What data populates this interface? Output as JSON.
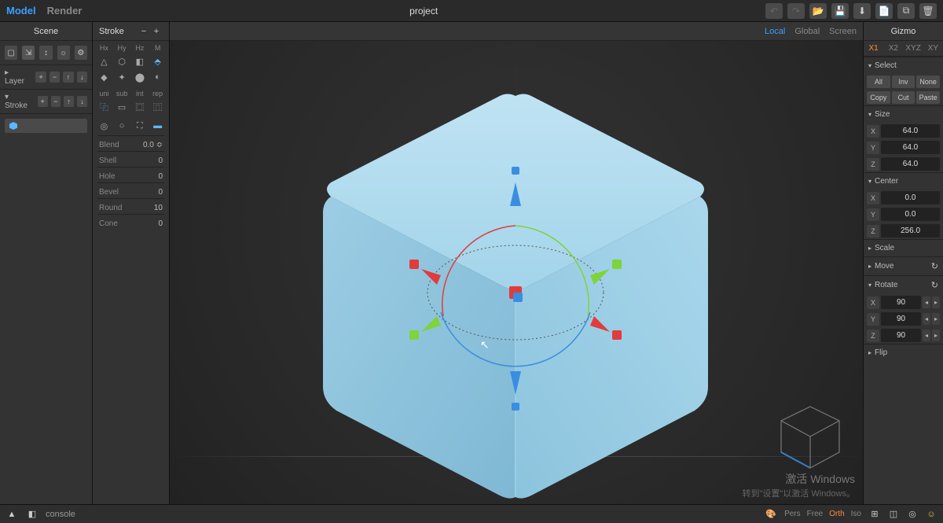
{
  "topbar": {
    "tabs": {
      "model": "Model",
      "render": "Render"
    },
    "active_tab": "model",
    "title": "project",
    "actions": {
      "undo": "↶",
      "redo": "↷",
      "open": "📂",
      "save": "💾",
      "import": "⬇",
      "new": "📄",
      "copy": "⧉",
      "delete": "🗑"
    }
  },
  "scene": {
    "title": "Scene",
    "toolbar_icons": [
      "folder",
      "tree",
      "move",
      "sun",
      "gear"
    ],
    "layer": {
      "label": "▸ Layer",
      "btns": [
        "+",
        "−",
        "↑",
        "↓"
      ]
    },
    "stroke": {
      "label": "▾ Stroke",
      "btns": [
        "+",
        "−",
        "↑",
        "↓"
      ]
    },
    "tree_item_icon_color": "#5ab8ff"
  },
  "stroke": {
    "title": "Stroke",
    "plus": "+",
    "minus": "−",
    "axis_labels": [
      "Hx",
      "Hy",
      "Hz",
      "M"
    ],
    "shape_row1": [
      "△",
      "⬡",
      "◧",
      "⬘"
    ],
    "shape_row1_active": 3,
    "shape_row2": [
      "◆",
      "✦",
      "⬤",
      "◐"
    ],
    "mode_labels": [
      "uni",
      "sub",
      "int",
      "rep"
    ],
    "ops_row": [
      "⿻",
      "▭",
      "⿴",
      "⿵"
    ],
    "ops_row_active": 0,
    "misc_row": [
      "◎",
      "○",
      "⛶",
      "▬"
    ],
    "props": [
      {
        "label": "Blend",
        "value": "0.0 ≎"
      },
      {
        "label": "Shell",
        "value": "0"
      },
      {
        "label": "Hole",
        "value": "0"
      },
      {
        "label": "Bevel",
        "value": "0"
      },
      {
        "label": "Round",
        "value": "10"
      },
      {
        "label": "Cone",
        "value": "0"
      }
    ]
  },
  "viewport": {
    "spaces": [
      "Local",
      "Global",
      "Screen"
    ],
    "active_space": 0,
    "cube": {
      "top_color": "#aed9ef",
      "left_color": "#86bdd9",
      "right_color": "#9ccde5",
      "edge_color": "#6fa6c2",
      "gizmo": {
        "axis_red": "#e03c3c",
        "axis_green": "#7ed43a",
        "axis_blue": "#3a8ee0"
      }
    },
    "watermark": {
      "line1": "激活 Windows",
      "line2": "转到\"设置\"以激活 Windows。"
    },
    "camera_bar": {
      "modes": [
        "Pers",
        "Free",
        "Orth",
        "Iso"
      ],
      "active": 2
    }
  },
  "gizmo": {
    "title": "Gizmo",
    "tabs": [
      "X1",
      "X2",
      "XYZ",
      "XY"
    ],
    "active_tab": 0,
    "select": {
      "label": "Select",
      "row1": [
        "All",
        "Inv",
        "None"
      ],
      "row2": [
        "Copy",
        "Cut",
        "Paste"
      ]
    },
    "size": {
      "label": "Size",
      "X": "64.0",
      "Y": "64.0",
      "Z": "64.0"
    },
    "center": {
      "label": "Center",
      "X": "0.0",
      "Y": "0.0",
      "Z": "256.0"
    },
    "scale": {
      "label": "Scale"
    },
    "move": {
      "label": "Move"
    },
    "rotate": {
      "label": "Rotate",
      "X": "90",
      "Y": "90",
      "Z": "90"
    },
    "flip": {
      "label": "Flip"
    }
  },
  "bottom": {
    "console": "console",
    "palette": "🎨",
    "grid": "⊞",
    "cube": "◫",
    "target": "◎",
    "face": "☺"
  }
}
